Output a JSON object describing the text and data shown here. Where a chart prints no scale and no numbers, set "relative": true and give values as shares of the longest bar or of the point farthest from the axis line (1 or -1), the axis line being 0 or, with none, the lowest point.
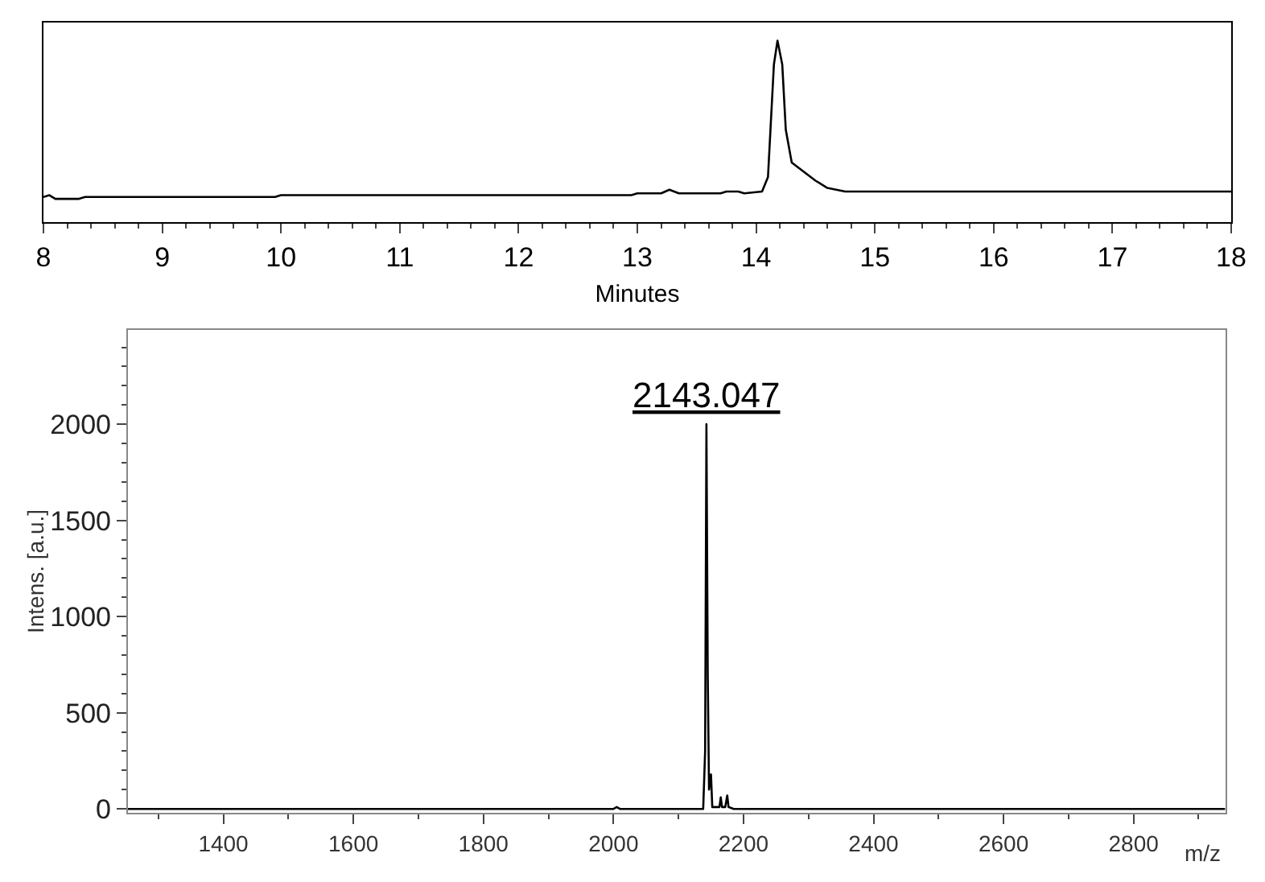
{
  "chart_data": [
    {
      "type": "line",
      "xlabel": "Minutes",
      "relative": true,
      "tick_labels": "x",
      "color": "#000000",
      "x": [
        8.0,
        8.05,
        8.1,
        8.3,
        8.35,
        9.95,
        10.0,
        12.95,
        13.0,
        13.2,
        13.27,
        13.35,
        13.7,
        13.75,
        13.85,
        13.9,
        14.05,
        14.1,
        14.15,
        14.18,
        14.22,
        14.25,
        14.3,
        14.4,
        14.5,
        14.6,
        14.75,
        18.0
      ],
      "values": [
        0.14,
        0.15,
        0.13,
        0.13,
        0.14,
        0.14,
        0.15,
        0.15,
        0.16,
        0.16,
        0.18,
        0.16,
        0.16,
        0.17,
        0.17,
        0.16,
        0.17,
        0.25,
        0.87,
        1.0,
        0.87,
        0.51,
        0.33,
        0.28,
        0.23,
        0.19,
        0.17,
        0.17
      ],
      "xlim": [
        8,
        18
      ],
      "xticks": [
        8,
        9,
        10,
        11,
        12,
        13,
        14,
        15,
        16,
        17,
        18
      ]
    },
    {
      "type": "line",
      "xlabel": "m/z",
      "ylabel": "Intens. [a.u.]",
      "color": "#000000",
      "x": [
        1253,
        2000,
        2005,
        2010,
        2138,
        2141,
        2143,
        2145,
        2147,
        2150,
        2152,
        2163,
        2165,
        2167,
        2172,
        2175,
        2177,
        2185,
        2941
      ],
      "values": [
        0,
        0,
        10,
        0,
        0,
        300,
        2000,
        700,
        100,
        180,
        10,
        10,
        60,
        10,
        10,
        70,
        10,
        0,
        0
      ],
      "xlim": [
        1253,
        2941
      ],
      "xticks": [
        1400,
        1600,
        1800,
        2000,
        2200,
        2400,
        2600,
        2800
      ],
      "ylim": [
        -20,
        2490
      ],
      "yticks": [
        0,
        500,
        1000,
        1500,
        2000
      ],
      "annotations": [
        {
          "text": "2143.047",
          "x": 2143,
          "y": 2000
        }
      ]
    }
  ]
}
